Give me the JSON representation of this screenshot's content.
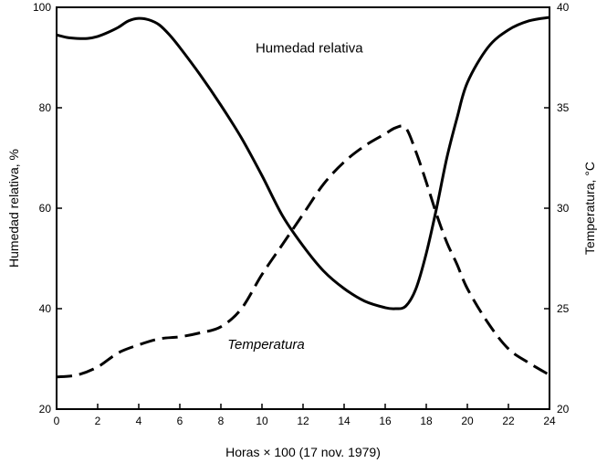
{
  "chart_data": {
    "type": "line",
    "title": "",
    "xlabel": "Horas × 100 (17 nov. 1979)",
    "ylabel_left": "Humedad relativa, %",
    "ylabel_right": "Temperatura, °C",
    "xlim": [
      0,
      24
    ],
    "ylim_left": [
      20,
      100
    ],
    "ylim_right": [
      20,
      40
    ],
    "x_ticks": [
      0,
      2,
      4,
      6,
      8,
      10,
      12,
      14,
      16,
      18,
      20,
      22,
      24
    ],
    "y_left_ticks": [
      20,
      40,
      60,
      80,
      100
    ],
    "y_right_ticks": [
      20,
      25,
      30,
      35,
      40
    ],
    "grid": false,
    "legend": "none",
    "annotations": [
      {
        "text": "Humedad relativa",
        "series": "Humedad relativa",
        "x": 12.3,
        "y_left": 91
      },
      {
        "text": "Temperatura",
        "series": "Temperatura",
        "x": 10.2,
        "y_left": 32
      }
    ],
    "series": [
      {
        "name": "Humedad relativa",
        "axis": "left",
        "style": "solid",
        "color": "#000000",
        "x": [
          0,
          0.5,
          1,
          1.5,
          2,
          2.5,
          3,
          3.5,
          4,
          4.5,
          5,
          5.5,
          6,
          7,
          8,
          9,
          10,
          11,
          12,
          13,
          14,
          15,
          16,
          16.5,
          17,
          17.5,
          18,
          18.5,
          19,
          19.5,
          20,
          21,
          22,
          23,
          24
        ],
        "values": [
          94.5,
          94,
          93.8,
          93.8,
          94.2,
          95,
          96,
          97.3,
          97.8,
          97.5,
          96.5,
          94.5,
          92,
          86.5,
          80.5,
          74,
          66.5,
          58.5,
          52.5,
          47.5,
          44,
          41.5,
          40.2,
          40,
          40.5,
          44,
          51,
          60,
          70,
          78,
          85,
          92,
          95.5,
          97.3,
          98
        ]
      },
      {
        "name": "Temperatura",
        "axis": "right",
        "style": "dashed",
        "color": "#000000",
        "x": [
          0,
          1,
          2,
          3,
          4,
          5,
          6,
          7,
          8,
          9,
          10,
          11,
          12,
          13,
          14,
          15,
          16,
          16.5,
          17,
          17.5,
          18,
          18.5,
          19,
          19.5,
          20,
          21,
          22,
          23,
          24
        ],
        "values": [
          21.6,
          21.7,
          22.1,
          22.8,
          23.2,
          23.5,
          23.6,
          23.8,
          24.1,
          25,
          26.7,
          28.2,
          29.7,
          31.2,
          32.3,
          33.1,
          33.7,
          34,
          34,
          32.8,
          31.3,
          29.7,
          28.3,
          27.2,
          26,
          24.3,
          23,
          22.3,
          21.7
        ]
      }
    ]
  }
}
